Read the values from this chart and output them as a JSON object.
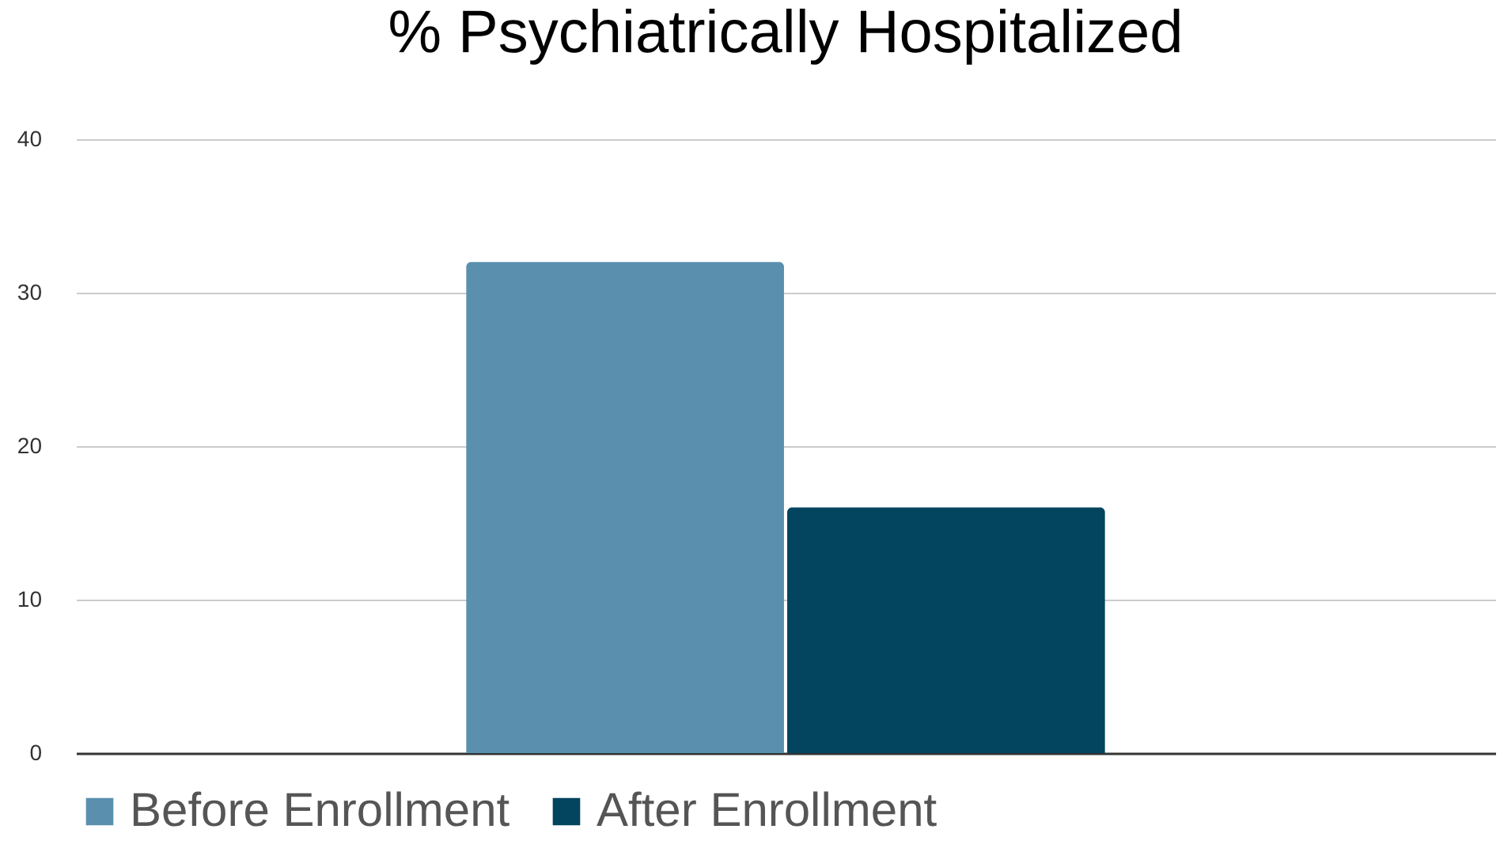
{
  "chart_data": {
    "type": "bar",
    "title": "% Psychiatrically Hospitalized",
    "categories": [
      null
    ],
    "series": [
      {
        "name": "Before Enrollment",
        "color": "#5a90ae",
        "values": [
          32
        ]
      },
      {
        "name": "After Enrollment",
        "color": "#03445f",
        "values": [
          16
        ]
      }
    ],
    "ylim": [
      0,
      40
    ],
    "yticks": [
      0,
      10,
      20,
      30,
      40
    ],
    "grid": "y",
    "legend": "bottom"
  }
}
